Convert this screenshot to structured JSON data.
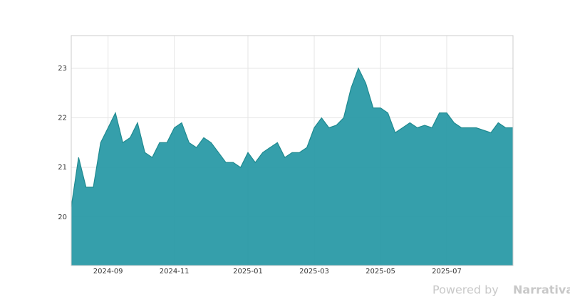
{
  "chart_data": {
    "type": "area",
    "categories": [
      null,
      null,
      null,
      null,
      null,
      "2024-09",
      null,
      null,
      null,
      null,
      null,
      null,
      null,
      null,
      "2024-11",
      null,
      null,
      null,
      null,
      null,
      null,
      null,
      null,
      null,
      "2025-01",
      null,
      null,
      null,
      null,
      null,
      null,
      null,
      null,
      "2025-03",
      null,
      null,
      null,
      null,
      null,
      null,
      null,
      null,
      "2025-05",
      null,
      null,
      null,
      null,
      null,
      null,
      null,
      null,
      "2025-07",
      null,
      null,
      null,
      null,
      null,
      null,
      null,
      null,
      null
    ],
    "values": [
      20.2,
      21.2,
      20.6,
      20.6,
      21.5,
      21.8,
      22.1,
      21.5,
      21.6,
      21.9,
      21.3,
      21.2,
      21.5,
      21.5,
      21.8,
      21.9,
      21.5,
      21.4,
      21.6,
      21.5,
      21.3,
      21.1,
      21.1,
      21.0,
      21.3,
      21.1,
      21.3,
      21.4,
      21.5,
      21.2,
      21.3,
      21.3,
      21.4,
      21.8,
      22.0,
      21.8,
      21.85,
      22.0,
      22.6,
      23.0,
      22.7,
      22.2,
      22.2,
      22.1,
      21.7,
      21.8,
      21.9,
      21.8,
      21.85,
      21.8,
      22.1,
      22.1,
      21.9,
      21.8,
      21.8,
      21.8,
      21.75,
      21.7,
      21.9,
      21.8,
      21.8
    ],
    "color": "#2a9aa6",
    "line_color": "#1f8a90",
    "ylim": [
      19.02,
      23.66
    ],
    "yticks": [
      20,
      21,
      22,
      23
    ],
    "grid": true,
    "branding": "Powered by ",
    "branding_name": "Narrativa"
  }
}
